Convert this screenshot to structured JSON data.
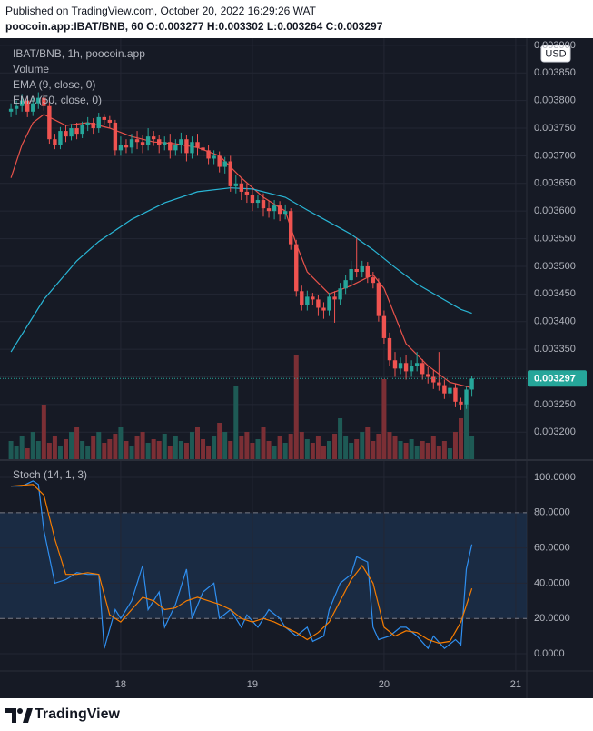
{
  "header": {
    "published": "Published on TradingView.com, October 20, 2022 16:29:26 WAT",
    "symbol": "poocoin.app:IBAT/BNB, 60",
    "ohlc": [
      "O:0.003277",
      "H:0.003302",
      "L:0.003264",
      "C:0.003297"
    ]
  },
  "footer": {
    "logo": "TradingView"
  },
  "chart_data": [
    {
      "type": "candlestick",
      "title": "IBAT/BNB, 1h, poocoin.app",
      "currency": "USD",
      "up_color": "#26a69a",
      "down_color": "#ef5350",
      "grid": true,
      "xlim": [
        2,
        98
      ],
      "xticks": [
        {
          "value": 24,
          "label": "18"
        },
        {
          "value": 48,
          "label": "19"
        },
        {
          "value": 72,
          "label": "20"
        },
        {
          "value": 96,
          "label": "21"
        }
      ],
      "ylim": [
        0.003151,
        0.003913
      ],
      "yticks": [
        {
          "value": 0.0032,
          "label": "0.003200"
        },
        {
          "value": 0.00325,
          "label": "0.003250"
        },
        {
          "value": 0.0033,
          "label": "0.003300"
        },
        {
          "value": 0.00335,
          "label": "0.003350"
        },
        {
          "value": 0.0034,
          "label": "0.003400"
        },
        {
          "value": 0.00345,
          "label": "0.003450"
        },
        {
          "value": 0.0035,
          "label": "0.003500"
        },
        {
          "value": 0.00355,
          "label": "0.003550"
        },
        {
          "value": 0.0036,
          "label": "0.003600"
        },
        {
          "value": 0.00365,
          "label": "0.003650"
        },
        {
          "value": 0.0037,
          "label": "0.003700"
        },
        {
          "value": 0.00375,
          "label": "0.003750"
        },
        {
          "value": 0.0038,
          "label": "0.003800"
        },
        {
          "value": 0.00385,
          "label": "0.003850"
        },
        {
          "value": 0.0039,
          "label": "0.003900"
        }
      ],
      "x": [
        4,
        5,
        6,
        7,
        8,
        9,
        10,
        11,
        12,
        13,
        14,
        15,
        16,
        17,
        18,
        19,
        20,
        21,
        22,
        23,
        24,
        25,
        26,
        27,
        28,
        29,
        30,
        31,
        32,
        33,
        34,
        35,
        36,
        37,
        38,
        39,
        40,
        41,
        42,
        43,
        44,
        45,
        46,
        47,
        48,
        49,
        50,
        51,
        52,
        53,
        54,
        55,
        56,
        57,
        58,
        59,
        60,
        61,
        62,
        63,
        64,
        65,
        66,
        67,
        68,
        69,
        70,
        71,
        72,
        73,
        74,
        75,
        76,
        77,
        78,
        79,
        80,
        81,
        82,
        83,
        84,
        85,
        86,
        87,
        88
      ],
      "open": [
        0.00378,
        0.003785,
        0.00379,
        0.0038,
        0.00378,
        0.003795,
        0.003805,
        0.00379,
        0.00373,
        0.00372,
        0.003745,
        0.003735,
        0.00375,
        0.00374,
        0.003755,
        0.00376,
        0.00375,
        0.00377,
        0.003765,
        0.00376,
        0.00371,
        0.00372,
        0.003715,
        0.00373,
        0.003725,
        0.00372,
        0.003735,
        0.00373,
        0.00372,
        0.003725,
        0.00371,
        0.00372,
        0.00373,
        0.003705,
        0.003725,
        0.003715,
        0.00371,
        0.003695,
        0.0037,
        0.00368,
        0.00369,
        0.003645,
        0.00365,
        0.003635,
        0.00363,
        0.003615,
        0.00362,
        0.003605,
        0.0036,
        0.00361,
        0.003595,
        0.0036,
        0.00354,
        0.003455,
        0.00343,
        0.003445,
        0.00344,
        0.003425,
        0.00342,
        0.003445,
        0.00344,
        0.00346,
        0.003475,
        0.003495,
        0.00349,
        0.0035,
        0.00348,
        0.00347,
        0.00341,
        0.00337,
        0.00333,
        0.003315,
        0.003325,
        0.00331,
        0.00332,
        0.003325,
        0.003305,
        0.0033,
        0.00329,
        0.003285,
        0.00327,
        0.00328,
        0.003255,
        0.00325,
        0.003277
      ],
      "high": [
        0.003795,
        0.0038,
        0.003812,
        0.003808,
        0.003805,
        0.003815,
        0.003812,
        0.003798,
        0.00374,
        0.003752,
        0.003755,
        0.003758,
        0.00376,
        0.003762,
        0.00377,
        0.003768,
        0.003778,
        0.003776,
        0.003772,
        0.003765,
        0.003735,
        0.00373,
        0.00374,
        0.003745,
        0.003738,
        0.00375,
        0.003745,
        0.003738,
        0.003735,
        0.00374,
        0.00373,
        0.003742,
        0.003738,
        0.003735,
        0.00374,
        0.003722,
        0.00372,
        0.00371,
        0.003708,
        0.003698,
        0.0037,
        0.003665,
        0.00366,
        0.00365,
        0.003642,
        0.00363,
        0.003632,
        0.003618,
        0.00362,
        0.003618,
        0.003612,
        0.003605,
        0.003548,
        0.003465,
        0.003456,
        0.003452,
        0.003448,
        0.003435,
        0.003452,
        0.003455,
        0.00347,
        0.003485,
        0.00351,
        0.003552,
        0.00351,
        0.003508,
        0.00349,
        0.003478,
        0.00342,
        0.00338,
        0.003345,
        0.003335,
        0.00334,
        0.00333,
        0.003345,
        0.003332,
        0.003318,
        0.003312,
        0.003345,
        0.003295,
        0.003292,
        0.003288,
        0.003262,
        0.003282,
        0.003302
      ],
      "low": [
        0.00377,
        0.003775,
        0.00378,
        0.00377,
        0.003772,
        0.003785,
        0.003782,
        0.003722,
        0.003712,
        0.003712,
        0.003725,
        0.003728,
        0.00373,
        0.003732,
        0.003745,
        0.00374,
        0.003742,
        0.003755,
        0.00375,
        0.0037,
        0.0037,
        0.003705,
        0.003705,
        0.003712,
        0.003705,
        0.00371,
        0.003718,
        0.003705,
        0.00371,
        0.003695,
        0.0037,
        0.003705,
        0.00369,
        0.003695,
        0.0037,
        0.003698,
        0.003685,
        0.003685,
        0.00367,
        0.003668,
        0.003635,
        0.003632,
        0.00362,
        0.003615,
        0.0036,
        0.003605,
        0.00359,
        0.003588,
        0.003585,
        0.003582,
        0.003585,
        0.00353,
        0.003445,
        0.00342,
        0.00342,
        0.00343,
        0.00341,
        0.003405,
        0.00341,
        0.003398,
        0.00343,
        0.00345,
        0.003465,
        0.00348,
        0.00348,
        0.00347,
        0.00346,
        0.0034,
        0.00336,
        0.00332,
        0.0033,
        0.003305,
        0.003295,
        0.0033,
        0.00331,
        0.003295,
        0.003288,
        0.003278,
        0.003275,
        0.00326,
        0.003262,
        0.003245,
        0.00324,
        0.003242,
        0.003264
      ],
      "close": [
        0.003785,
        0.00379,
        0.0038,
        0.00378,
        0.003795,
        0.003805,
        0.00379,
        0.00373,
        0.00372,
        0.003745,
        0.003735,
        0.00375,
        0.00374,
        0.003755,
        0.00376,
        0.00375,
        0.00377,
        0.003765,
        0.00376,
        0.00371,
        0.00372,
        0.003715,
        0.00373,
        0.003725,
        0.00372,
        0.003735,
        0.00373,
        0.00372,
        0.003725,
        0.00371,
        0.00372,
        0.00373,
        0.003705,
        0.003725,
        0.003715,
        0.00371,
        0.003695,
        0.0037,
        0.00368,
        0.00369,
        0.003645,
        0.00365,
        0.003635,
        0.00363,
        0.003615,
        0.00362,
        0.003605,
        0.0036,
        0.00361,
        0.003595,
        0.0036,
        0.00354,
        0.003455,
        0.00343,
        0.003445,
        0.00344,
        0.003425,
        0.00342,
        0.003445,
        0.00344,
        0.00346,
        0.003475,
        0.003495,
        0.00349,
        0.0035,
        0.00348,
        0.00347,
        0.00341,
        0.00337,
        0.00333,
        0.003315,
        0.003325,
        0.00331,
        0.00332,
        0.003325,
        0.003305,
        0.0033,
        0.00329,
        0.003285,
        0.00327,
        0.00328,
        0.003255,
        0.00325,
        0.003277,
        0.003297
      ],
      "last_value_label": "0.003297",
      "volume": {
        "name": "Volume",
        "up_color": "#1e5a55",
        "down_color": "#7b2f35",
        "values": [
          20,
          15,
          25,
          12,
          30,
          20,
          60,
          18,
          25,
          15,
          22,
          30,
          35,
          20,
          15,
          25,
          30,
          18,
          22,
          28,
          35,
          20,
          15,
          25,
          30,
          18,
          22,
          20,
          28,
          15,
          25,
          20,
          18,
          30,
          35,
          22,
          15,
          25,
          40,
          30,
          20,
          80,
          25,
          30,
          18,
          22,
          35,
          20,
          15,
          25,
          18,
          28,
          115,
          30,
          22,
          18,
          25,
          15,
          20,
          28,
          45,
          25,
          18,
          22,
          30,
          35,
          20,
          28,
          88,
          30,
          25,
          20,
          18,
          22,
          15,
          20,
          18,
          25,
          15,
          20,
          12,
          30,
          45,
          60,
          25
        ]
      },
      "series": [
        {
          "name": "EMA (9, close, 0)",
          "color": "#e8524a",
          "x": [
            4,
            6,
            8,
            10,
            14,
            18,
            22,
            26,
            30,
            34,
            38,
            42,
            46,
            50,
            54,
            56,
            58,
            62,
            66,
            70,
            72,
            74,
            76,
            80,
            84,
            88
          ],
          "values": [
            0.00366,
            0.00372,
            0.00376,
            0.003775,
            0.003755,
            0.00376,
            0.00375,
            0.003735,
            0.003725,
            0.003722,
            0.003715,
            0.0037,
            0.00366,
            0.003625,
            0.0036,
            0.00354,
            0.00349,
            0.00345,
            0.003465,
            0.003485,
            0.00346,
            0.00341,
            0.00336,
            0.00332,
            0.00329,
            0.00328
          ]
        },
        {
          "name": "EMA (50, close, 0)",
          "color": "#29b6d6",
          "x": [
            4,
            10,
            16,
            20,
            26,
            32,
            38,
            44,
            48,
            54,
            58,
            62,
            66,
            70,
            74,
            78,
            82,
            86,
            88
          ],
          "values": [
            0.003345,
            0.00344,
            0.00351,
            0.003545,
            0.003585,
            0.003615,
            0.003635,
            0.003642,
            0.00364,
            0.003625,
            0.003602,
            0.00358,
            0.003558,
            0.00353,
            0.003498,
            0.003468,
            0.003445,
            0.003422,
            0.003415
          ]
        }
      ]
    },
    {
      "type": "line",
      "title": "Stoch (14, 1, 3)",
      "grid": true,
      "xlim": [
        2,
        98
      ],
      "xticks": [
        {
          "value": 24,
          "label": "18"
        },
        {
          "value": 48,
          "label": "19"
        },
        {
          "value": 72,
          "label": "20"
        },
        {
          "value": 96,
          "label": "21"
        }
      ],
      "ylim": [
        -9.8,
        109.3
      ],
      "yticks": [
        {
          "value": 0,
          "label": "0.0000"
        },
        {
          "value": 20,
          "label": "20.0000"
        },
        {
          "value": 40,
          "label": "40.0000"
        },
        {
          "value": 60,
          "label": "60.0000"
        },
        {
          "value": 80,
          "label": "80.0000"
        },
        {
          "value": 100,
          "label": "100.0000"
        }
      ],
      "bands": [
        20,
        80
      ],
      "band_color": "#1c3350",
      "series": [
        {
          "color": "#2f8ff0",
          "x": [
            4,
            6,
            8,
            9,
            10,
            12,
            14,
            16,
            18,
            20,
            21,
            23,
            24,
            26,
            28,
            29,
            31,
            32,
            34,
            36,
            37,
            39,
            41,
            42,
            44,
            46,
            47,
            49,
            51,
            53,
            54,
            56,
            58,
            59,
            61,
            62,
            64,
            66,
            67,
            69,
            70,
            71,
            73,
            75,
            76,
            78,
            80,
            81,
            83,
            85,
            86,
            87,
            88
          ],
          "values": [
            95,
            95,
            98,
            96,
            70,
            40,
            42,
            46,
            45,
            45,
            3,
            25,
            20,
            30,
            50,
            25,
            35,
            15,
            28,
            48,
            20,
            35,
            40,
            20,
            25,
            15,
            22,
            15,
            25,
            20,
            15,
            10,
            15,
            7,
            10,
            25,
            40,
            45,
            55,
            52,
            15,
            8,
            10,
            15,
            15,
            10,
            3,
            10,
            3,
            8,
            5,
            48,
            62
          ]
        },
        {
          "color": "#f57c00",
          "x": [
            4,
            8,
            10,
            12,
            14,
            16,
            18,
            20,
            22,
            24,
            26,
            28,
            30,
            32,
            34,
            36,
            38,
            40,
            42,
            44,
            46,
            48,
            50,
            52,
            54,
            56,
            58,
            60,
            62,
            64,
            66,
            68,
            70,
            72,
            74,
            76,
            78,
            80,
            82,
            84,
            86,
            88
          ],
          "values": [
            95,
            96,
            90,
            65,
            45,
            45,
            46,
            45,
            22,
            18,
            25,
            32,
            30,
            25,
            26,
            30,
            32,
            30,
            28,
            25,
            20,
            18,
            20,
            18,
            15,
            12,
            8,
            12,
            18,
            30,
            42,
            50,
            40,
            15,
            10,
            13,
            12,
            8,
            6,
            7,
            18,
            37
          ]
        }
      ]
    }
  ]
}
